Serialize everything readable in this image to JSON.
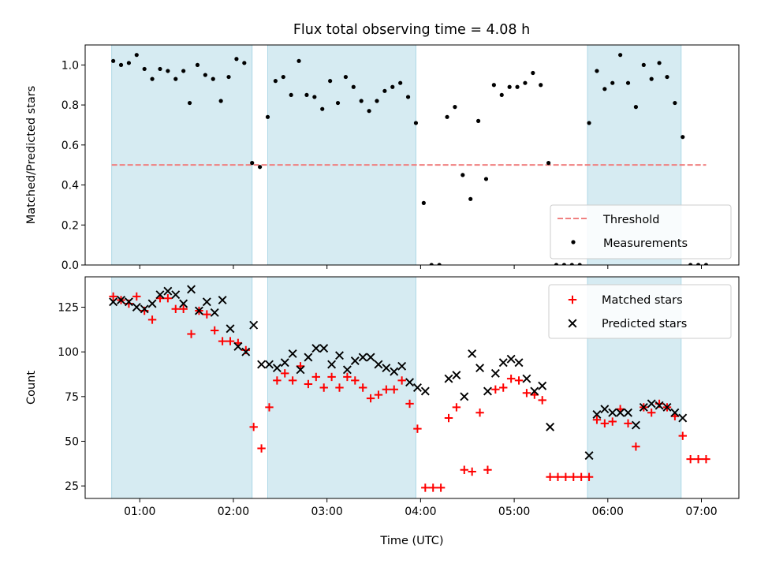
{
  "title": "Flux total observing time = 4.08 h",
  "colors": {
    "band": "#add8e6",
    "threshold": "#f08080",
    "measurement": "#000000",
    "matched": "#ff0000",
    "predicted": "#000000"
  },
  "chart_data": [
    {
      "type": "scatter",
      "ylabel": "Matched/Predicted stars",
      "xlabel": "",
      "xlim": [
        "00:25",
        "07:24"
      ],
      "ylim": [
        0,
        1.1
      ],
      "yticks": [
        "0.0",
        "0.2",
        "0.4",
        "0.6",
        "0.8",
        "1.0"
      ],
      "shaded_bands": [
        [
          "00:42",
          "02:12"
        ],
        [
          "02:22",
          "03:57"
        ],
        [
          "05:47",
          "06:47"
        ]
      ],
      "threshold": {
        "name": "Threshold",
        "y": 0.5,
        "x_range": [
          "00:42",
          "07:03"
        ],
        "style": "dashed"
      },
      "legend": {
        "position": "lower-right",
        "entries": [
          "Threshold",
          "Measurements"
        ]
      },
      "series": [
        {
          "name": "Measurements",
          "marker": "dot",
          "points": [
            [
              "00:43",
              1.02
            ],
            [
              "00:48",
              1.0
            ],
            [
              "00:53",
              1.01
            ],
            [
              "00:58",
              1.05
            ],
            [
              "01:03",
              0.98
            ],
            [
              "01:08",
              0.93
            ],
            [
              "01:13",
              0.98
            ],
            [
              "01:18",
              0.97
            ],
            [
              "01:23",
              0.93
            ],
            [
              "01:28",
              0.97
            ],
            [
              "01:32",
              0.81
            ],
            [
              "01:37",
              1.0
            ],
            [
              "01:42",
              0.95
            ],
            [
              "01:47",
              0.93
            ],
            [
              "01:52",
              0.82
            ],
            [
              "01:57",
              0.94
            ],
            [
              "02:02",
              1.03
            ],
            [
              "02:07",
              1.01
            ],
            [
              "02:12",
              0.51
            ],
            [
              "02:17",
              0.49
            ],
            [
              "02:22",
              0.74
            ],
            [
              "02:27",
              0.92
            ],
            [
              "02:32",
              0.94
            ],
            [
              "02:37",
              0.85
            ],
            [
              "02:42",
              1.02
            ],
            [
              "02:47",
              0.85
            ],
            [
              "02:52",
              0.84
            ],
            [
              "02:57",
              0.78
            ],
            [
              "03:02",
              0.92
            ],
            [
              "03:07",
              0.81
            ],
            [
              "03:12",
              0.94
            ],
            [
              "03:17",
              0.89
            ],
            [
              "03:22",
              0.82
            ],
            [
              "03:27",
              0.77
            ],
            [
              "03:32",
              0.82
            ],
            [
              "03:37",
              0.87
            ],
            [
              "03:42",
              0.89
            ],
            [
              "03:47",
              0.91
            ],
            [
              "03:52",
              0.84
            ],
            [
              "03:57",
              0.71
            ],
            [
              "04:02",
              0.31
            ],
            [
              "04:07",
              0.0
            ],
            [
              "04:12",
              0.0
            ],
            [
              "04:17",
              0.74
            ],
            [
              "04:22",
              0.79
            ],
            [
              "04:27",
              0.45
            ],
            [
              "04:32",
              0.33
            ],
            [
              "04:37",
              0.72
            ],
            [
              "04:42",
              0.43
            ],
            [
              "04:47",
              0.9
            ],
            [
              "04:52",
              0.85
            ],
            [
              "04:57",
              0.89
            ],
            [
              "05:02",
              0.89
            ],
            [
              "05:07",
              0.91
            ],
            [
              "05:12",
              0.96
            ],
            [
              "05:17",
              0.9
            ],
            [
              "05:22",
              0.51
            ],
            [
              "05:27",
              0.0
            ],
            [
              "05:32",
              0.0
            ],
            [
              "05:37",
              0.0
            ],
            [
              "05:42",
              0.0
            ],
            [
              "05:48",
              0.71
            ],
            [
              "05:53",
              0.97
            ],
            [
              "05:58",
              0.88
            ],
            [
              "06:03",
              0.91
            ],
            [
              "06:08",
              1.05
            ],
            [
              "06:13",
              0.91
            ],
            [
              "06:18",
              0.79
            ],
            [
              "06:23",
              1.0
            ],
            [
              "06:28",
              0.93
            ],
            [
              "06:33",
              1.01
            ],
            [
              "06:38",
              0.94
            ],
            [
              "06:43",
              0.81
            ],
            [
              "06:48",
              0.64
            ],
            [
              "06:53",
              0.0
            ],
            [
              "06:58",
              0.0
            ],
            [
              "07:03",
              0.0
            ]
          ]
        }
      ]
    },
    {
      "type": "scatter",
      "ylabel": "Count",
      "xlabel": "Time (UTC)",
      "xlim": [
        "00:25",
        "07:24"
      ],
      "ylim": [
        18,
        142
      ],
      "yticks": [
        "25",
        "50",
        "75",
        "100",
        "125"
      ],
      "xticks": [
        "01:00",
        "02:00",
        "03:00",
        "04:00",
        "05:00",
        "06:00",
        "07:00"
      ],
      "shaded_bands": [
        [
          "00:42",
          "02:12"
        ],
        [
          "02:22",
          "03:57"
        ],
        [
          "05:47",
          "06:47"
        ]
      ],
      "legend": {
        "position": "upper-right",
        "entries": [
          "Matched stars",
          "Predicted stars"
        ]
      },
      "series": [
        {
          "name": "Matched stars",
          "marker": "plus",
          "points": [
            [
              "00:43",
              131
            ],
            [
              "00:48",
              129
            ],
            [
              "00:53",
              127
            ],
            [
              "00:58",
              131
            ],
            [
              "01:03",
              123
            ],
            [
              "01:08",
              118
            ],
            [
              "01:13",
              130
            ],
            [
              "01:18",
              130
            ],
            [
              "01:23",
              124
            ],
            [
              "01:28",
              124
            ],
            [
              "01:33",
              110
            ],
            [
              "01:38",
              123
            ],
            [
              "01:43",
              121
            ],
            [
              "01:48",
              112
            ],
            [
              "01:53",
              106
            ],
            [
              "01:58",
              106
            ],
            [
              "02:03",
              105
            ],
            [
              "02:08",
              101
            ],
            [
              "02:13",
              58
            ],
            [
              "02:18",
              46
            ],
            [
              "02:23",
              69
            ],
            [
              "02:28",
              84
            ],
            [
              "02:33",
              88
            ],
            [
              "02:38",
              84
            ],
            [
              "02:43",
              92
            ],
            [
              "02:48",
              82
            ],
            [
              "02:53",
              86
            ],
            [
              "02:58",
              80
            ],
            [
              "03:03",
              86
            ],
            [
              "03:08",
              80
            ],
            [
              "03:13",
              86
            ],
            [
              "03:18",
              84
            ],
            [
              "03:23",
              80
            ],
            [
              "03:28",
              74
            ],
            [
              "03:33",
              76
            ],
            [
              "03:38",
              79
            ],
            [
              "03:43",
              79
            ],
            [
              "03:48",
              84
            ],
            [
              "03:53",
              71
            ],
            [
              "03:58",
              57
            ],
            [
              "04:03",
              24
            ],
            [
              "04:08",
              24
            ],
            [
              "04:13",
              24
            ],
            [
              "04:18",
              63
            ],
            [
              "04:23",
              69
            ],
            [
              "04:28",
              34
            ],
            [
              "04:33",
              33
            ],
            [
              "04:38",
              66
            ],
            [
              "04:43",
              34
            ],
            [
              "04:48",
              79
            ],
            [
              "04:53",
              80
            ],
            [
              "04:58",
              85
            ],
            [
              "05:03",
              84
            ],
            [
              "05:08",
              77
            ],
            [
              "05:13",
              76
            ],
            [
              "05:18",
              73
            ],
            [
              "05:23",
              30
            ],
            [
              "05:28",
              30
            ],
            [
              "05:33",
              30
            ],
            [
              "05:38",
              30
            ],
            [
              "05:43",
              30
            ],
            [
              "05:48",
              30
            ],
            [
              "05:53",
              62
            ],
            [
              "05:58",
              60
            ],
            [
              "06:03",
              61
            ],
            [
              "06:08",
              68
            ],
            [
              "06:13",
              60
            ],
            [
              "06:18",
              47
            ],
            [
              "06:23",
              69
            ],
            [
              "06:28",
              66
            ],
            [
              "06:33",
              71
            ],
            [
              "06:38",
              69
            ],
            [
              "06:43",
              64
            ],
            [
              "06:48",
              53
            ],
            [
              "06:53",
              40
            ],
            [
              "06:58",
              40
            ],
            [
              "07:03",
              40
            ]
          ]
        },
        {
          "name": "Predicted stars",
          "marker": "x",
          "points": [
            [
              "00:43",
              128
            ],
            [
              "00:48",
              129
            ],
            [
              "00:53",
              128
            ],
            [
              "00:58",
              125
            ],
            [
              "01:03",
              124
            ],
            [
              "01:08",
              127
            ],
            [
              "01:13",
              132
            ],
            [
              "01:18",
              134
            ],
            [
              "01:23",
              132
            ],
            [
              "01:28",
              127
            ],
            [
              "01:33",
              135
            ],
            [
              "01:38",
              123
            ],
            [
              "01:43",
              128
            ],
            [
              "01:48",
              122
            ],
            [
              "01:53",
              129
            ],
            [
              "01:58",
              113
            ],
            [
              "02:03",
              103
            ],
            [
              "02:08",
              100
            ],
            [
              "02:13",
              115
            ],
            [
              "02:18",
              93
            ],
            [
              "02:23",
              93
            ],
            [
              "02:28",
              91
            ],
            [
              "02:33",
              94
            ],
            [
              "02:38",
              99
            ],
            [
              "02:43",
              90
            ],
            [
              "02:48",
              97
            ],
            [
              "02:53",
              102
            ],
            [
              "02:58",
              102
            ],
            [
              "03:03",
              93
            ],
            [
              "03:08",
              98
            ],
            [
              "03:13",
              90
            ],
            [
              "03:18",
              95
            ],
            [
              "03:23",
              97
            ],
            [
              "03:28",
              97
            ],
            [
              "03:33",
              93
            ],
            [
              "03:38",
              91
            ],
            [
              "03:43",
              89
            ],
            [
              "03:48",
              92
            ],
            [
              "03:53",
              83
            ],
            [
              "03:58",
              80
            ],
            [
              "04:03",
              78
            ],
            [
              "04:18",
              85
            ],
            [
              "04:23",
              87
            ],
            [
              "04:28",
              75
            ],
            [
              "04:33",
              99
            ],
            [
              "04:38",
              91
            ],
            [
              "04:43",
              78
            ],
            [
              "04:48",
              88
            ],
            [
              "04:53",
              94
            ],
            [
              "04:58",
              96
            ],
            [
              "05:03",
              94
            ],
            [
              "05:08",
              85
            ],
            [
              "05:13",
              78
            ],
            [
              "05:18",
              81
            ],
            [
              "05:23",
              58
            ],
            [
              "05:48",
              42
            ],
            [
              "05:53",
              65
            ],
            [
              "05:58",
              68
            ],
            [
              "06:03",
              66
            ],
            [
              "06:08",
              66
            ],
            [
              "06:13",
              66
            ],
            [
              "06:18",
              59
            ],
            [
              "06:23",
              69
            ],
            [
              "06:28",
              71
            ],
            [
              "06:33",
              70
            ],
            [
              "06:38",
              69
            ],
            [
              "06:43",
              66
            ],
            [
              "06:48",
              63
            ]
          ]
        }
      ]
    }
  ]
}
